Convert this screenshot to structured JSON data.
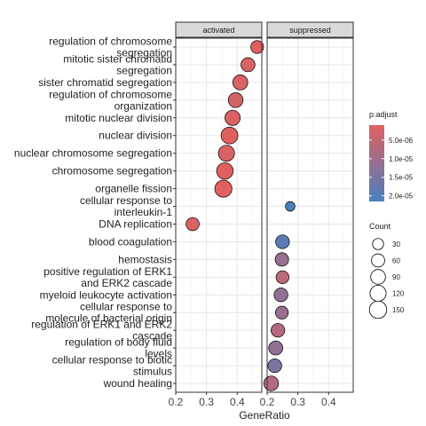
{
  "chart_data": {
    "type": "scatter",
    "panels": [
      {
        "name": "activated",
        "xlim": [
          0.2,
          0.48
        ]
      },
      {
        "name": "suppressed",
        "xlim": [
          0.2,
          0.48
        ]
      }
    ],
    "xlabel": "GeneRatio",
    "xticks": [
      "0.2",
      "0.3",
      "0.4"
    ],
    "categories": [
      [
        "regulation of chromosome",
        "segregation"
      ],
      [
        "mitotic sister chromatid",
        "segregation"
      ],
      [
        "sister chromatid segregation"
      ],
      [
        "regulation of chromosome",
        "organization"
      ],
      [
        "mitotic nuclear division"
      ],
      [
        "nuclear division"
      ],
      [
        "nuclear chromosome segregation"
      ],
      [
        "chromosome segregation"
      ],
      [
        "organelle fission"
      ],
      [
        "cellular response to",
        "interleukin-1"
      ],
      [
        "DNA replication"
      ],
      [
        "blood coagulation"
      ],
      [
        "hemostasis"
      ],
      [
        "positive regulation of ERK1",
        "and ERK2 cascade"
      ],
      [
        "myeloid leukocyte activation"
      ],
      [
        "cellular response to",
        "molecule of bacterial origin"
      ],
      [
        "regulation of ERK1 and ERK2",
        "cascade"
      ],
      [
        "regulation of body fluid",
        "levels"
      ],
      [
        "cellular response to biotic",
        "stimulus"
      ],
      [
        "wound healing"
      ]
    ],
    "points": [
      {
        "panel": "activated",
        "cat": 0,
        "x": 0.465,
        "count": 55,
        "p_adjust": 1e-06
      },
      {
        "panel": "activated",
        "cat": 1,
        "x": 0.435,
        "count": 75,
        "p_adjust": 2e-06
      },
      {
        "panel": "activated",
        "cat": 2,
        "x": 0.41,
        "count": 95,
        "p_adjust": 2e-06
      },
      {
        "panel": "activated",
        "cat": 3,
        "x": 0.395,
        "count": 90,
        "p_adjust": 3e-06
      },
      {
        "panel": "activated",
        "cat": 4,
        "x": 0.385,
        "count": 100,
        "p_adjust": 2e-06
      },
      {
        "panel": "activated",
        "cat": 5,
        "x": 0.375,
        "count": 135,
        "p_adjust": 1e-06
      },
      {
        "panel": "activated",
        "cat": 6,
        "x": 0.365,
        "count": 120,
        "p_adjust": 2e-06
      },
      {
        "panel": "activated",
        "cat": 7,
        "x": 0.36,
        "count": 130,
        "p_adjust": 1e-06
      },
      {
        "panel": "activated",
        "cat": 8,
        "x": 0.355,
        "count": 145,
        "p_adjust": 1e-06
      },
      {
        "panel": "activated",
        "cat": 10,
        "x": 0.255,
        "count": 60,
        "p_adjust": 2e-06
      },
      {
        "panel": "suppressed",
        "cat": 9,
        "x": 0.275,
        "count": 15,
        "p_adjust": 2.1e-05
      },
      {
        "panel": "suppressed",
        "cat": 11,
        "x": 0.25,
        "count": 70,
        "p_adjust": 1.9e-05
      },
      {
        "panel": "suppressed",
        "cat": 12,
        "x": 0.248,
        "count": 65,
        "p_adjust": 1.1e-05
      },
      {
        "panel": "suppressed",
        "cat": 13,
        "x": 0.25,
        "count": 55,
        "p_adjust": 6e-06
      },
      {
        "panel": "suppressed",
        "cat": 14,
        "x": 0.245,
        "count": 70,
        "p_adjust": 1.2e-05
      },
      {
        "panel": "suppressed",
        "cat": 15,
        "x": 0.248,
        "count": 55,
        "p_adjust": 1.1e-05
      },
      {
        "panel": "suppressed",
        "cat": 16,
        "x": 0.235,
        "count": 70,
        "p_adjust": 7e-06
      },
      {
        "panel": "suppressed",
        "cat": 17,
        "x": 0.228,
        "count": 75,
        "p_adjust": 1.2e-05
      },
      {
        "panel": "suppressed",
        "cat": 18,
        "x": 0.225,
        "count": 70,
        "p_adjust": 1.5e-05
      },
      {
        "panel": "suppressed",
        "cat": 19,
        "x": 0.213,
        "count": 90,
        "p_adjust": 7e-06
      }
    ],
    "color_legend": {
      "title": "p.adjust",
      "range": [
        1e-06,
        2.15e-05
      ],
      "low_color": "#e06060",
      "high_color": "#4a7fc0",
      "ticks": [
        {
          "label": "5.0e-06",
          "value": 5e-06
        },
        {
          "label": "1.0e-05",
          "value": 1e-05
        },
        {
          "label": "1.5e-05",
          "value": 1.5e-05
        },
        {
          "label": "2.0e-05",
          "value": 2e-05
        }
      ]
    },
    "size_legend": {
      "title": "Count",
      "values": [
        30,
        60,
        90,
        120,
        150
      ]
    },
    "grid": true
  }
}
